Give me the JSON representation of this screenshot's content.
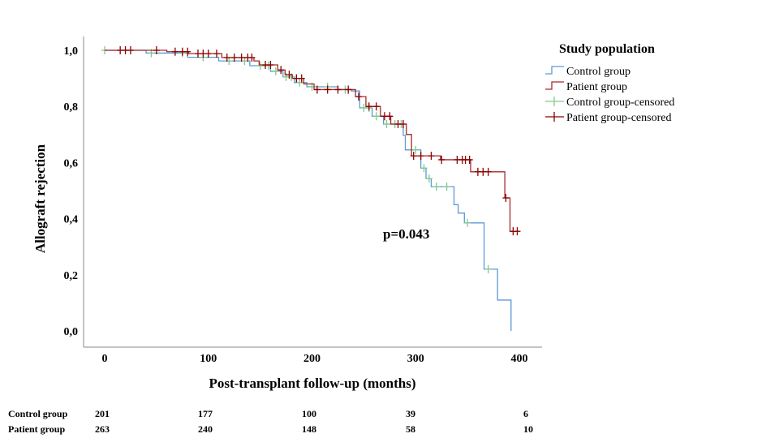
{
  "chart_data": {
    "type": "line",
    "subtype": "kaplan-meier",
    "xlabel": "Post-transplant follow-up (months)",
    "ylabel": "Allograft rejection",
    "xlim": [
      0,
      400
    ],
    "ylim": [
      0,
      1
    ],
    "x_ticks": [
      "0",
      "100",
      "200",
      "300",
      "400"
    ],
    "x_tick_values": [
      0,
      100,
      200,
      300,
      400
    ],
    "y_ticks": [
      "0,0",
      "0,2",
      "0,4",
      "0,6",
      "0,8",
      "1,0"
    ],
    "y_tick_values": [
      0,
      0.2,
      0.4,
      0.6,
      0.8,
      1.0
    ],
    "annotation": "p=0.043",
    "legend": {
      "title": "Study population",
      "placement": "top-right",
      "entries": [
        "Control group",
        "Patient group",
        "Control group-censored",
        "Patient group-censored"
      ]
    },
    "series": [
      {
        "name": "Control group",
        "color": "#5b9bd5",
        "censor_color": "#82c98e",
        "steps": [
          [
            0,
            1.0
          ],
          [
            40,
            0.99
          ],
          [
            80,
            0.975
          ],
          [
            110,
            0.962
          ],
          [
            140,
            0.945
          ],
          [
            160,
            0.925
          ],
          [
            172,
            0.905
          ],
          [
            183,
            0.885
          ],
          [
            195,
            0.87
          ],
          [
            225,
            0.86
          ],
          [
            238,
            0.855
          ],
          [
            246,
            0.795
          ],
          [
            258,
            0.765
          ],
          [
            269,
            0.737
          ],
          [
            288,
            0.697
          ],
          [
            290,
            0.645
          ],
          [
            305,
            0.58
          ],
          [
            310,
            0.543
          ],
          [
            315,
            0.514
          ],
          [
            337,
            0.45
          ],
          [
            341,
            0.42
          ],
          [
            347,
            0.385
          ],
          [
            366,
            0.22
          ],
          [
            379,
            0.11
          ],
          [
            392,
            0.0
          ]
        ],
        "end": 392,
        "censored": [
          0,
          45,
          75,
          95,
          120,
          135,
          150,
          158,
          165,
          175,
          180,
          188,
          200,
          215,
          232,
          250,
          255,
          262,
          272,
          280,
          286,
          300,
          308,
          313,
          320,
          330,
          350,
          370
        ]
      },
      {
        "name": "Patient group",
        "color": "#a52a2a",
        "censor_color": "#8b0000",
        "steps": [
          [
            0,
            1.0
          ],
          [
            60,
            0.995
          ],
          [
            81,
            0.988
          ],
          [
            113,
            0.974
          ],
          [
            144,
            0.962
          ],
          [
            149,
            0.948
          ],
          [
            167,
            0.93
          ],
          [
            174,
            0.913
          ],
          [
            181,
            0.9
          ],
          [
            192,
            0.88
          ],
          [
            202,
            0.86
          ],
          [
            242,
            0.835
          ],
          [
            252,
            0.8
          ],
          [
            266,
            0.765
          ],
          [
            276,
            0.737
          ],
          [
            291,
            0.7
          ],
          [
            296,
            0.624
          ],
          [
            324,
            0.61
          ],
          [
            353,
            0.567
          ],
          [
            386,
            0.474
          ],
          [
            391,
            0.355
          ]
        ],
        "end": 398,
        "censored": [
          15,
          20,
          25,
          50,
          68,
          75,
          80,
          90,
          95,
          100,
          108,
          118,
          125,
          132,
          138,
          142,
          155,
          160,
          170,
          178,
          185,
          190,
          205,
          215,
          225,
          235,
          245,
          255,
          262,
          270,
          275,
          283,
          288,
          298,
          305,
          315,
          325,
          340,
          345,
          348,
          352,
          360,
          365,
          370,
          387,
          394,
          398
        ]
      }
    ],
    "risk_table": {
      "rows": [
        {
          "label": "Control group",
          "values": [
            "201",
            "177",
            "100",
            "39",
            "6"
          ]
        },
        {
          "label": "Patient group",
          "values": [
            "263",
            "240",
            "148",
            "58",
            "10"
          ]
        }
      ]
    }
  }
}
